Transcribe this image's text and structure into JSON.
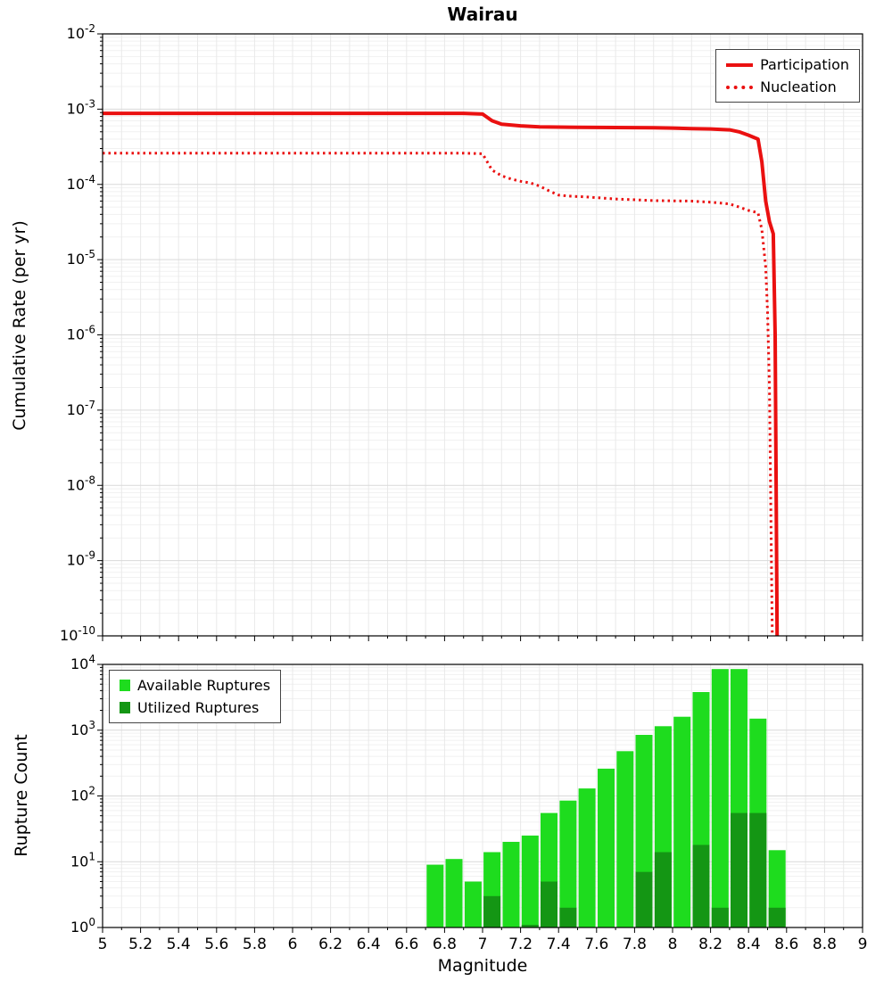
{
  "title": "Wairau",
  "chart_data": [
    {
      "type": "line",
      "title": "Wairau",
      "xlabel": "Magnitude",
      "ylabel": "Cumulative Rate (per yr)",
      "xlim": [
        5,
        9
      ],
      "ylim": [
        1e-10,
        0.01
      ],
      "ylog": true,
      "grid": true,
      "legend_position": "top-right",
      "y_tick_exponents": [
        -2,
        -3,
        -4,
        -5,
        -6,
        -7,
        -8,
        -9,
        -10
      ],
      "series": [
        {
          "name": "Participation",
          "style": "solid",
          "color": "#ea1010",
          "points": [
            [
              5.0,
              0.00088
            ],
            [
              6.0,
              0.00088
            ],
            [
              6.9,
              0.00088
            ],
            [
              7.0,
              0.00086
            ],
            [
              7.05,
              0.0007
            ],
            [
              7.1,
              0.00063
            ],
            [
              7.2,
              0.0006
            ],
            [
              7.3,
              0.00058
            ],
            [
              7.5,
              0.000575
            ],
            [
              7.7,
              0.00057
            ],
            [
              7.9,
              0.000565
            ],
            [
              8.0,
              0.00056
            ],
            [
              8.1,
              0.00055
            ],
            [
              8.2,
              0.000545
            ],
            [
              8.3,
              0.00053
            ],
            [
              8.35,
              0.0005
            ],
            [
              8.4,
              0.00045
            ],
            [
              8.45,
              0.0004
            ],
            [
              8.47,
              0.0002
            ],
            [
              8.49,
              6e-05
            ],
            [
              8.51,
              3.2e-05
            ],
            [
              8.53,
              2.2e-05
            ],
            [
              8.54,
              1e-06
            ],
            [
              8.55,
              1e-10
            ]
          ]
        },
        {
          "name": "Nucleation",
          "style": "dotted",
          "color": "#ea1010",
          "points": [
            [
              5.0,
              0.00026
            ],
            [
              6.0,
              0.00026
            ],
            [
              6.9,
              0.00026
            ],
            [
              7.0,
              0.000255
            ],
            [
              7.05,
              0.000155
            ],
            [
              7.1,
              0.00013
            ],
            [
              7.15,
              0.000118
            ],
            [
              7.2,
              0.00011
            ],
            [
              7.25,
              0.000105
            ],
            [
              7.3,
              9.5e-05
            ],
            [
              7.35,
              8.2e-05
            ],
            [
              7.4,
              7.2e-05
            ],
            [
              7.45,
              7e-05
            ],
            [
              7.55,
              6.8e-05
            ],
            [
              7.7,
              6.4e-05
            ],
            [
              7.9,
              6.1e-05
            ],
            [
              8.1,
              6e-05
            ],
            [
              8.2,
              5.8e-05
            ],
            [
              8.3,
              5.5e-05
            ],
            [
              8.35,
              5e-05
            ],
            [
              8.4,
              4.5e-05
            ],
            [
              8.45,
              4.2e-05
            ],
            [
              8.47,
              2.5e-05
            ],
            [
              8.49,
              8e-06
            ],
            [
              8.5,
              2e-06
            ],
            [
              8.51,
              2e-07
            ],
            [
              8.52,
              1e-09
            ],
            [
              8.525,
              1e-10
            ]
          ]
        }
      ]
    },
    {
      "type": "bar",
      "xlabel": "Magnitude",
      "ylabel": "Rupture Count",
      "xlim": [
        5,
        9
      ],
      "ylim": [
        1,
        10000
      ],
      "ylog": true,
      "grid": true,
      "legend_position": "top-left",
      "bar_width": 0.1,
      "y_tick_exponents": [
        0,
        1,
        2,
        3,
        4
      ],
      "x_ticks": {
        "values": [
          5,
          5.2,
          5.4,
          5.6,
          5.8,
          6,
          6.2,
          6.4,
          6.6,
          6.8,
          7,
          7.2,
          7.4,
          7.6,
          7.8,
          8,
          8.2,
          8.4,
          8.6,
          8.8,
          9
        ],
        "labels": [
          "5",
          "5.2",
          "5.4",
          "5.6",
          "5.8",
          "6",
          "6.2",
          "6.4",
          "6.6",
          "6.8",
          "7",
          "7.2",
          "7.4",
          "7.6",
          "7.8",
          "8",
          "8.2",
          "8.4",
          "8.6",
          "8.8",
          "9"
        ]
      },
      "categories": [
        6.75,
        6.85,
        6.95,
        7.05,
        7.15,
        7.25,
        7.35,
        7.45,
        7.55,
        7.65,
        7.75,
        7.85,
        7.95,
        8.05,
        8.15,
        8.25,
        8.35,
        8.45,
        8.55
      ],
      "series": [
        {
          "name": "Available Ruptures",
          "color": "#1edc1e",
          "values": [
            9,
            11,
            5,
            14,
            20,
            25,
            55,
            85,
            130,
            260,
            480,
            850,
            1150,
            1600,
            3800,
            8500,
            8500,
            1500,
            15
          ]
        },
        {
          "name": "Utilized Ruptures",
          "color": "#149614",
          "values": [
            0,
            0,
            0,
            3,
            0,
            1,
            5,
            2,
            0,
            0,
            0,
            7,
            14,
            0,
            18,
            2,
            55,
            55,
            2
          ]
        }
      ]
    }
  ]
}
